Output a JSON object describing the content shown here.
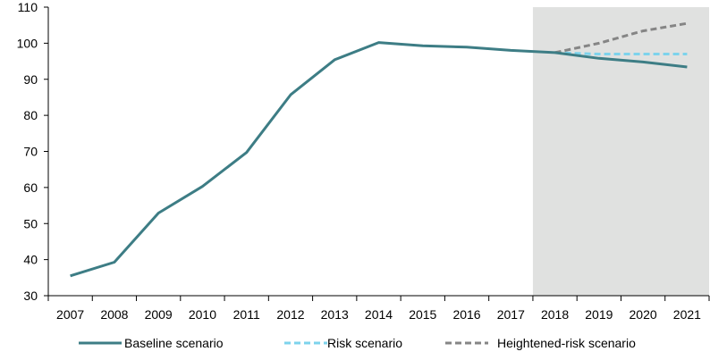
{
  "chart_data": {
    "type": "line",
    "x": [
      "2007",
      "2008",
      "2009",
      "2010",
      "2011",
      "2012",
      "2013",
      "2014",
      "2015",
      "2016",
      "2017",
      "2018",
      "2019",
      "2020",
      "2021"
    ],
    "ylim": [
      30,
      110
    ],
    "yticks": [
      30,
      40,
      50,
      60,
      70,
      80,
      90,
      100,
      110
    ],
    "projection_shading_from": "2018",
    "projection_shading_color": "#e0e1e0",
    "legend_position": "bottom",
    "grid": false,
    "series": [
      {
        "name": "Baseline scenario",
        "color": "#3d7d85",
        "style": "solid",
        "values": [
          35.5,
          39.3,
          52.9,
          60.3,
          69.7,
          85.7,
          95.4,
          100.2,
          99.3,
          98.9,
          98.0,
          97.4,
          95.8,
          94.8,
          93.4
        ]
      },
      {
        "name": "Risk scenario",
        "color": "#7dd3ec",
        "style": "dashed",
        "values": [
          null,
          null,
          null,
          null,
          null,
          null,
          null,
          null,
          null,
          null,
          null,
          97.4,
          97.0,
          97.0,
          97.0
        ]
      },
      {
        "name": "Heightened-risk scenario",
        "color": "#858585",
        "style": "dashed",
        "values": [
          null,
          null,
          null,
          null,
          null,
          null,
          null,
          null,
          null,
          null,
          null,
          97.4,
          100.0,
          103.4,
          105.5
        ]
      }
    ]
  }
}
